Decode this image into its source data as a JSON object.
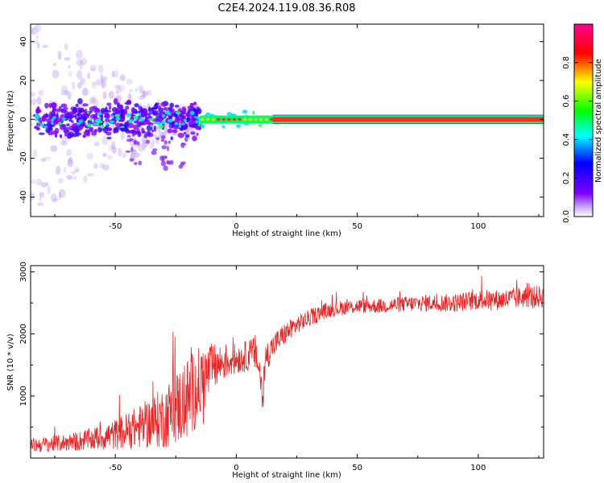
{
  "title": "C2E4.2024.119.08.36.R08",
  "chart_data": [
    {
      "type": "heatmap",
      "xlabel": "Height of straight line (km)",
      "ylabel": "Frequency (Hz)",
      "xlim": [
        -85,
        127
      ],
      "ylim": [
        -50,
        49
      ],
      "xticks": [
        -50,
        0,
        50,
        100
      ],
      "yticks": [
        -40,
        -20,
        0,
        20,
        40
      ],
      "colorbar": {
        "label": "Normalized spectral amplitude",
        "range": [
          0,
          1
        ],
        "ticks": [
          "0.0",
          "0.2",
          "0.4",
          "0.6",
          "0.8"
        ],
        "colormap": "rainbow (purple → blue → cyan → green → yellow → red → magenta)",
        "colors": [
          "#ffffff",
          "#7f00ff",
          "#0000ff",
          "#00ffff",
          "#00ff00",
          "#ffff00",
          "#ff0000",
          "#ff0090"
        ]
      },
      "description_of_signal": {
        "line_frequency_hz": 0,
        "scatter_region_km": [
          -85,
          -15
        ],
        "clean_line_from_km": 15
      }
    },
    {
      "type": "line",
      "xlabel": "Height of straight line (km)",
      "ylabel": "SNR (10 * v/v)",
      "xlim": [
        -85,
        127
      ],
      "ylim": [
        0,
        3100
      ],
      "xticks": [
        -50,
        0,
        50,
        100
      ],
      "yticks": [
        1000,
        2000,
        3000
      ],
      "series": [
        {
          "color": "#ee2222",
          "envelope_x": [
            -85,
            -70,
            -60,
            -50,
            -40,
            -30,
            -25,
            -20,
            -15,
            -10,
            -5,
            0,
            5,
            8,
            10,
            11,
            12,
            15,
            20,
            25,
            30,
            35,
            40,
            50,
            60,
            70,
            80,
            90,
            100,
            110,
            120,
            127
          ],
          "envelope_mean": [
            200,
            250,
            300,
            380,
            500,
            650,
            800,
            950,
            1200,
            1450,
            1550,
            1600,
            1650,
            1700,
            1300,
            900,
            1600,
            1800,
            2000,
            2150,
            2250,
            2350,
            2400,
            2450,
            2450,
            2480,
            2500,
            2500,
            2550,
            2550,
            2600,
            2600
          ],
          "envelope_spread": [
            120,
            140,
            180,
            250,
            350,
            500,
            600,
            700,
            600,
            400,
            300,
            250,
            250,
            300,
            300,
            300,
            250,
            200,
            180,
            150,
            140,
            130,
            120,
            120,
            120,
            130,
            140,
            150,
            160,
            170,
            180,
            180
          ]
        }
      ]
    }
  ]
}
